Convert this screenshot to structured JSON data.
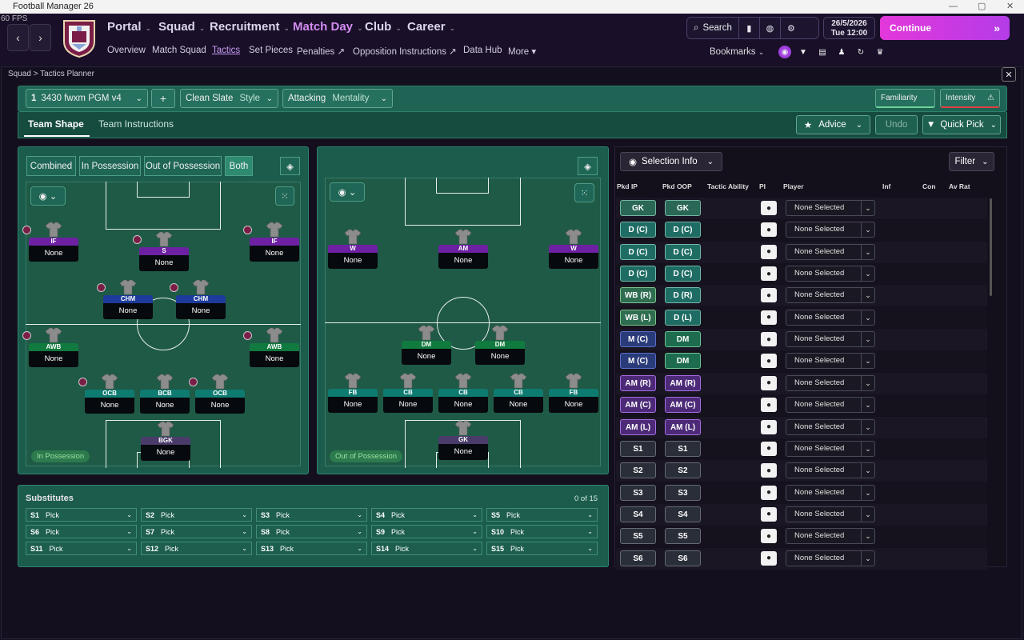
{
  "window": {
    "title": "Football Manager 26",
    "fps": "60 FPS",
    "controls": [
      "—",
      "▢",
      "✕"
    ]
  },
  "nav": {
    "back": "‹",
    "forward": "›",
    "menus": [
      "Portal",
      "Squad",
      "Recruitment",
      "Match Day",
      "Club",
      "Career"
    ],
    "submenu": [
      "Overview",
      "Match Squad",
      "Tactics",
      "Set Pieces",
      "Penalties ↗",
      "Opposition Instructions ↗",
      "Data Hub",
      "More ▾"
    ],
    "search": "Search",
    "date": "26/5/2026",
    "day_time": "Tue  12:00",
    "continue": "Continue",
    "bookmarks": "Bookmarks"
  },
  "breadcrumb": "Squad > Tactics Planner",
  "toolbar": {
    "tactic_num": "1",
    "tactic_name": "3430 fwxm PGM v4",
    "add": "+",
    "style_value": "Clean Slate",
    "style_label": "Style",
    "mentality_value": "Attacking",
    "mentality_label": "Mentality",
    "familiarity": "Familiarity",
    "intensity": "Intensity"
  },
  "tabs": {
    "team_shape": "Team Shape",
    "team_instructions": "Team Instructions",
    "advice": "Advice",
    "undo": "Undo",
    "quick_pick": "Quick Pick"
  },
  "pitch_left": {
    "toggles": [
      "Combined",
      "In Possession",
      "Out of Possession",
      "Both"
    ],
    "label": "In Possession",
    "players": [
      {
        "role": "IF",
        "name": "None",
        "color": "rp"
      },
      {
        "role": "S",
        "name": "None",
        "color": "rp"
      },
      {
        "role": "IF",
        "name": "None",
        "color": "rp"
      },
      {
        "role": "CHM",
        "name": "None",
        "color": "rb"
      },
      {
        "role": "CHM",
        "name": "None",
        "color": "rb"
      },
      {
        "role": "AWB",
        "name": "None",
        "color": "rg"
      },
      {
        "role": "AWB",
        "name": "None",
        "color": "rg"
      },
      {
        "role": "OCB",
        "name": "None",
        "color": "rt"
      },
      {
        "role": "BCB",
        "name": "None",
        "color": "rt"
      },
      {
        "role": "OCB",
        "name": "None",
        "color": "rt"
      },
      {
        "role": "BGK",
        "name": "None",
        "color": "rk"
      }
    ]
  },
  "pitch_right": {
    "label": "Out of Possession",
    "players": [
      {
        "role": "W",
        "name": "None",
        "color": "rp"
      },
      {
        "role": "AM",
        "name": "None",
        "color": "rp"
      },
      {
        "role": "W",
        "name": "None",
        "color": "rp"
      },
      {
        "role": "DM",
        "name": "None",
        "color": "rg"
      },
      {
        "role": "DM",
        "name": "None",
        "color": "rg"
      },
      {
        "role": "FB",
        "name": "None",
        "color": "rt"
      },
      {
        "role": "CB",
        "name": "None",
        "color": "rt"
      },
      {
        "role": "CB",
        "name": "None",
        "color": "rt"
      },
      {
        "role": "CB",
        "name": "None",
        "color": "rt"
      },
      {
        "role": "FB",
        "name": "None",
        "color": "rt"
      },
      {
        "role": "GK",
        "name": "None",
        "color": "rk"
      }
    ]
  },
  "substitutes": {
    "title": "Substitutes",
    "count": "0 of 15",
    "slots": [
      {
        "slot": "S1",
        "value": "Pick"
      },
      {
        "slot": "S2",
        "value": "Pick"
      },
      {
        "slot": "S3",
        "value": "Pick"
      },
      {
        "slot": "S4",
        "value": "Pick"
      },
      {
        "slot": "S5",
        "value": "Pick"
      },
      {
        "slot": "S6",
        "value": "Pick"
      },
      {
        "slot": "S7",
        "value": "Pick"
      },
      {
        "slot": "S8",
        "value": "Pick"
      },
      {
        "slot": "S9",
        "value": "Pick"
      },
      {
        "slot": "S10",
        "value": "Pick"
      },
      {
        "slot": "S11",
        "value": "Pick"
      },
      {
        "slot": "S12",
        "value": "Pick"
      },
      {
        "slot": "S13",
        "value": "Pick"
      },
      {
        "slot": "S14",
        "value": "Pick"
      },
      {
        "slot": "S15",
        "value": "Pick"
      }
    ]
  },
  "selection": {
    "button": "Selection Info",
    "filter": "Filter",
    "headers": [
      "Pkd IP",
      "Pkd OOP",
      "Tactic Ability",
      "PI",
      "Player",
      "Inf",
      "Con",
      "Av Rat"
    ],
    "rows": [
      {
        "ip": "GK",
        "oop": "GK",
        "ipc": "pg",
        "oopc": "pg",
        "player": "None Selected"
      },
      {
        "ip": "D (C)",
        "oop": "D (C)",
        "ipc": "pd",
        "oopc": "pd",
        "player": "None Selected"
      },
      {
        "ip": "D (C)",
        "oop": "D (C)",
        "ipc": "pd",
        "oopc": "pd",
        "player": "None Selected"
      },
      {
        "ip": "D (C)",
        "oop": "D (C)",
        "ipc": "pd",
        "oopc": "pd",
        "player": "None Selected"
      },
      {
        "ip": "WB (R)",
        "oop": "D (R)",
        "ipc": "pw",
        "oopc": "pd",
        "player": "None Selected"
      },
      {
        "ip": "WB (L)",
        "oop": "D (L)",
        "ipc": "pw",
        "oopc": "pd",
        "player": "None Selected"
      },
      {
        "ip": "M (C)",
        "oop": "DM",
        "ipc": "pm",
        "oopc": "pdm",
        "player": "None Selected"
      },
      {
        "ip": "M (C)",
        "oop": "DM",
        "ipc": "pm",
        "oopc": "pdm",
        "player": "None Selected"
      },
      {
        "ip": "AM (R)",
        "oop": "AM (R)",
        "ipc": "pa",
        "oopc": "pa",
        "player": "None Selected"
      },
      {
        "ip": "AM (C)",
        "oop": "AM (C)",
        "ipc": "pa",
        "oopc": "pa",
        "player": "None Selected"
      },
      {
        "ip": "AM (L)",
        "oop": "AM (L)",
        "ipc": "pa",
        "oopc": "pa",
        "player": "None Selected"
      },
      {
        "ip": "S1",
        "oop": "S1",
        "ipc": "ps",
        "oopc": "ps",
        "player": "None Selected"
      },
      {
        "ip": "S2",
        "oop": "S2",
        "ipc": "ps",
        "oopc": "ps",
        "player": "None Selected"
      },
      {
        "ip": "S3",
        "oop": "S3",
        "ipc": "ps",
        "oopc": "ps",
        "player": "None Selected"
      },
      {
        "ip": "S4",
        "oop": "S4",
        "ipc": "ps",
        "oopc": "ps",
        "player": "None Selected"
      },
      {
        "ip": "S5",
        "oop": "S5",
        "ipc": "ps",
        "oopc": "ps",
        "player": "None Selected"
      },
      {
        "ip": "S6",
        "oop": "S6",
        "ipc": "ps",
        "oopc": "ps",
        "player": "None Selected"
      }
    ]
  }
}
